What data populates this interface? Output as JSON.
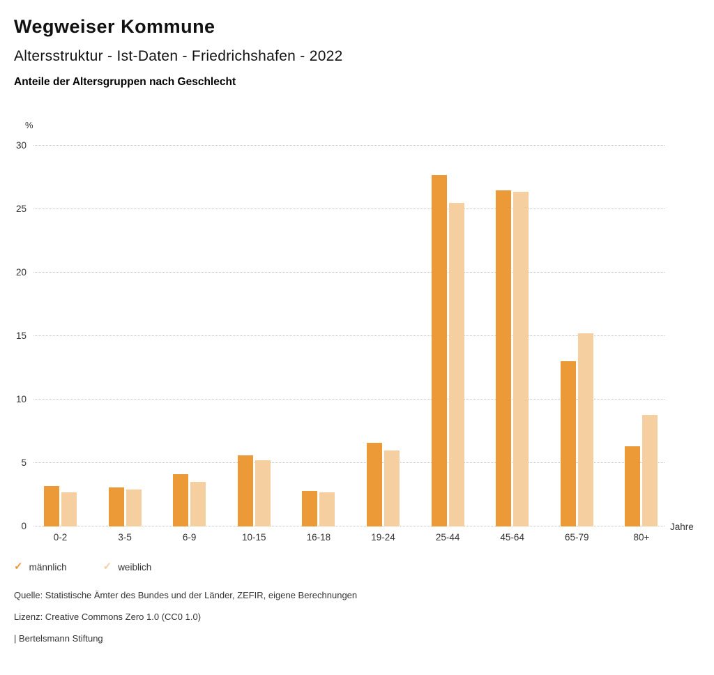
{
  "header": {
    "title": "Wegweiser Kommune",
    "subtitle": "Altersstruktur - Ist-Daten - Friedrichshafen - 2022",
    "heading": "Anteile der Altersgruppen nach Geschlecht"
  },
  "chart_data": {
    "type": "bar",
    "title": "Anteile der Altersgruppen nach Geschlecht",
    "categories": [
      "0-2",
      "3-5",
      "6-9",
      "10-15",
      "16-18",
      "19-24",
      "25-44",
      "45-64",
      "65-79",
      "80+"
    ],
    "series": [
      {
        "name": "männlich",
        "color": "#EC9938",
        "values": [
          3.2,
          3.1,
          4.1,
          5.6,
          2.8,
          6.6,
          27.7,
          26.5,
          13.0,
          6.3
        ]
      },
      {
        "name": "weiblich",
        "color": "#F5CFA0",
        "values": [
          2.7,
          2.9,
          3.5,
          5.2,
          2.7,
          6.0,
          25.5,
          26.4,
          15.2,
          8.8
        ]
      }
    ],
    "unit_label": "%",
    "xlabel": "Jahre",
    "ylim": [
      0,
      30
    ],
    "ytick_step": 5,
    "grid": "horizontal-dotted",
    "legend_position": "bottom-left",
    "gridline_color": "#c3c3c3"
  },
  "legend": {
    "marker_glyph": "✓",
    "items": [
      {
        "label": "männlich",
        "color": "#EC9938"
      },
      {
        "label": "weiblich",
        "color": "#F5CFA0"
      }
    ]
  },
  "footer": {
    "source": "Quelle: Statistische Ämter des Bundes und der Länder, ZEFIR, eigene Berechnungen",
    "license": "Lizenz: Creative Commons Zero 1.0 (CC0 1.0)",
    "attribution": "| Bertelsmann Stiftung"
  }
}
